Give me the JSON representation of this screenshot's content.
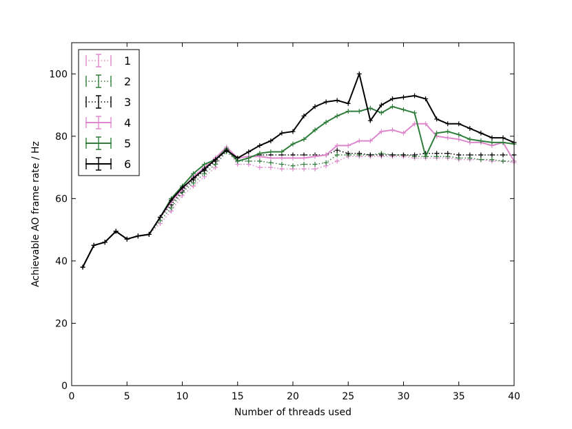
{
  "chart_data": {
    "type": "line",
    "title": "",
    "xlabel": "Number of threads used",
    "ylabel": "Achievable AO frame rate / Hz",
    "xlim": [
      0,
      40
    ],
    "ylim": [
      0,
      110
    ],
    "xticks": [
      0,
      5,
      10,
      15,
      20,
      25,
      30,
      35,
      40
    ],
    "yticks": [
      0,
      20,
      40,
      60,
      80,
      100
    ],
    "grid": false,
    "legend_position": "top-left",
    "x": [
      1,
      2,
      3,
      4,
      5,
      6,
      7,
      8,
      9,
      10,
      11,
      12,
      13,
      14,
      15,
      16,
      17,
      18,
      19,
      20,
      21,
      22,
      23,
      24,
      25,
      26,
      27,
      28,
      29,
      30,
      31,
      32,
      33,
      34,
      35,
      36,
      37,
      38,
      39,
      40
    ],
    "series": [
      {
        "name": "1",
        "color": "#dd88cc",
        "style": "dotted",
        "values": [
          38,
          45,
          46,
          49.5,
          47,
          48,
          48.5,
          52,
          56,
          61,
          64,
          67,
          70,
          76,
          71,
          71,
          70,
          70,
          69.5,
          69.5,
          69.5,
          69.5,
          70.5,
          72,
          73.5,
          73.5,
          73.5,
          73.5,
          73.5,
          73.5,
          73,
          73,
          73,
          73,
          72.5,
          72.5,
          72.5,
          72,
          72,
          71.5
        ]
      },
      {
        "name": "2",
        "color": "#2e7d3a",
        "style": "dotted",
        "values": [
          38,
          45,
          46,
          49.5,
          47,
          48,
          48.5,
          53,
          57,
          62,
          65,
          68,
          71,
          75,
          72,
          72,
          72,
          71.5,
          71,
          70.5,
          71,
          71,
          71.5,
          74,
          74,
          74,
          74,
          74.5,
          74,
          74,
          73.5,
          73.5,
          73.5,
          73.5,
          73,
          73,
          72.5,
          72.5,
          72,
          72
        ]
      },
      {
        "name": "3",
        "color": "#000000",
        "style": "dotted",
        "values": [
          38,
          45,
          46,
          49.5,
          47,
          48,
          48.5,
          54,
          58,
          62.5,
          66,
          69,
          72,
          75.5,
          73,
          73.5,
          74,
          74,
          74,
          74,
          74,
          74,
          74,
          75.5,
          74.5,
          74.5,
          74,
          74,
          74,
          74,
          74,
          74.5,
          74.5,
          74.5,
          74,
          74,
          74,
          74,
          74,
          74
        ]
      },
      {
        "name": "4",
        "color": "#dd88cc",
        "style": "solid",
        "values": [
          38,
          45,
          46,
          49.5,
          47,
          48,
          48.5,
          54,
          59,
          63,
          67,
          70,
          73,
          76.5,
          73,
          73.5,
          73.5,
          73,
          73,
          73,
          73,
          73.5,
          74,
          77,
          77,
          78.5,
          78.5,
          81.5,
          82,
          81,
          84,
          84,
          80,
          79.5,
          79,
          78,
          78,
          77,
          78,
          72
        ]
      },
      {
        "name": "5",
        "color": "#2e7d3a",
        "style": "solid",
        "values": [
          38,
          45,
          46,
          49.5,
          47,
          48,
          48.5,
          54,
          60,
          64,
          68,
          71,
          72.5,
          76,
          72,
          73,
          74.5,
          75,
          75,
          77.5,
          79,
          82,
          84.5,
          86.5,
          88,
          88,
          89,
          87.5,
          89.5,
          88.5,
          87.5,
          73.5,
          81,
          81.5,
          80.5,
          79,
          78.5,
          78,
          78,
          77.5
        ]
      },
      {
        "name": "6",
        "color": "#000000",
        "style": "solid",
        "values": [
          38,
          45,
          46,
          49.5,
          47,
          48,
          48.5,
          54,
          59.5,
          63.5,
          66.5,
          69.5,
          72.5,
          75.5,
          73,
          75,
          77,
          78.5,
          81,
          81.5,
          86.5,
          89.5,
          91,
          91.5,
          90.5,
          100,
          85,
          90,
          92,
          92.5,
          93,
          92,
          85.5,
          84,
          84,
          82.5,
          81,
          79.5,
          79.5,
          78
        ]
      }
    ]
  }
}
